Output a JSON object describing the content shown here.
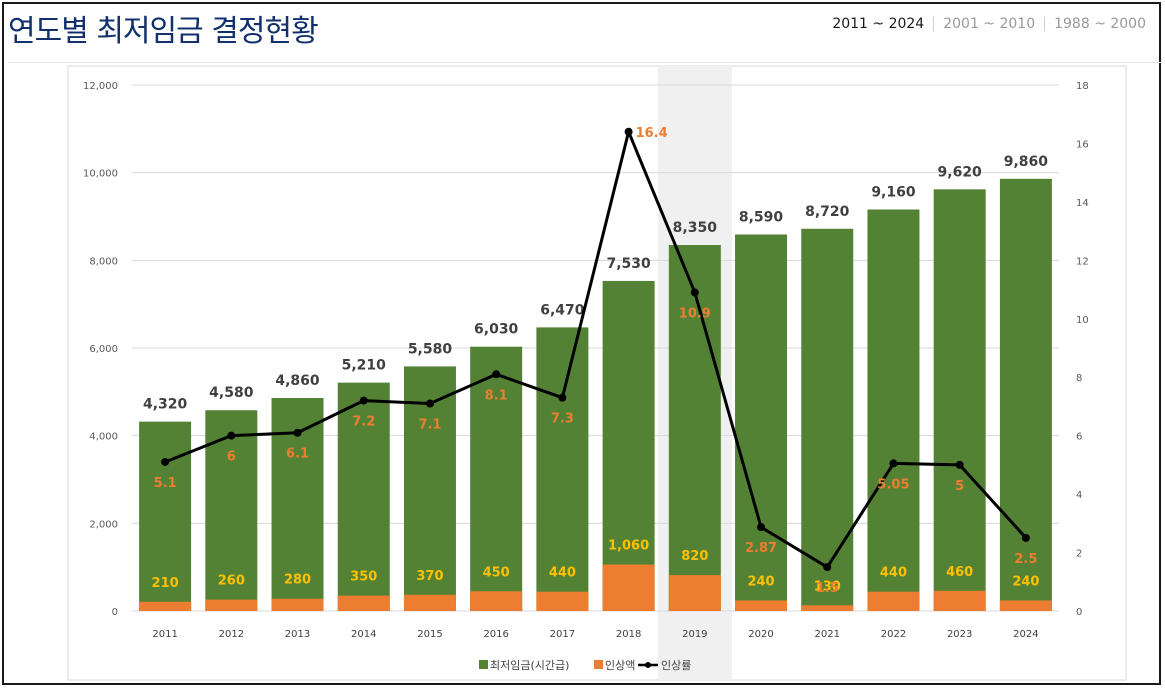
{
  "header": {
    "title": "연도별 최저임금 결정현황",
    "tabs": [
      {
        "label": "2011 ~ 2024",
        "active": true
      },
      {
        "label": "2001 ~ 2010",
        "active": false
      },
      {
        "label": "1988 ~ 2000",
        "active": false
      }
    ]
  },
  "colors": {
    "wage_bar": "#548235",
    "increase_bar": "#ed7d31",
    "rate_line": "#000000",
    "wage_label": "#404040",
    "increase_label": "#ffc000",
    "rate_label": "#ed7d31",
    "highlight": "#f0f0f0",
    "title": "#12306d"
  },
  "chart_data": {
    "type": "bar",
    "categories": [
      "2011",
      "2012",
      "2013",
      "2014",
      "2015",
      "2016",
      "2017",
      "2018",
      "2019",
      "2020",
      "2021",
      "2022",
      "2023",
      "2024"
    ],
    "series": [
      {
        "name": "최저임금(시간급)",
        "type": "bar",
        "axis": "left",
        "values": [
          4320,
          4580,
          4860,
          5210,
          5580,
          6030,
          6470,
          7530,
          8350,
          8590,
          8720,
          9160,
          9620,
          9860
        ],
        "labels": [
          "4,320",
          "4,580",
          "4,860",
          "5,210",
          "5,580",
          "6,030",
          "6,470",
          "7,530",
          "8,350",
          "8,590",
          "8,720",
          "9,160",
          "9,620",
          "9,860"
        ]
      },
      {
        "name": "인상액",
        "type": "bar",
        "axis": "left",
        "values": [
          210,
          260,
          280,
          350,
          370,
          450,
          440,
          1060,
          820,
          240,
          130,
          440,
          460,
          240
        ],
        "labels": [
          "210",
          "260",
          "280",
          "350",
          "370",
          "450",
          "440",
          "1,060",
          "820",
          "240",
          "130",
          "440",
          "460",
          "240"
        ]
      },
      {
        "name": "인상률",
        "type": "line",
        "axis": "right",
        "values": [
          5.1,
          6,
          6.1,
          7.2,
          7.1,
          8.1,
          7.3,
          16.4,
          10.9,
          2.87,
          1.5,
          5.05,
          5,
          2.5
        ],
        "labels": [
          "5.1",
          "6",
          "6.1",
          "7.2",
          "7.1",
          "8.1",
          "7.3",
          "16.4",
          "10.9",
          "2.87",
          "1.5",
          "5.05",
          "5",
          "2.5"
        ]
      }
    ],
    "y_left": {
      "min": 0,
      "max": 12000,
      "ticks": [
        "0",
        "2,000",
        "4,000",
        "6,000",
        "8,000",
        "10,000",
        "12,000"
      ]
    },
    "y_right": {
      "min": 0,
      "max": 18,
      "ticks": [
        "0",
        "2",
        "4",
        "6",
        "8",
        "10",
        "12",
        "14",
        "16",
        "18"
      ]
    },
    "highlight_category": "2019",
    "grid": true,
    "legend_position": "bottom"
  }
}
